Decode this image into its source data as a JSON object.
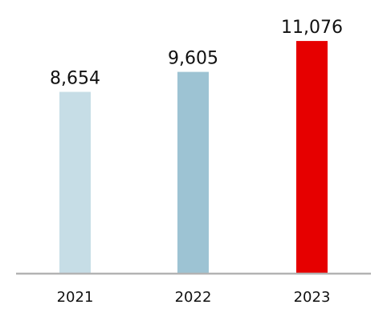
{
  "chart_data": {
    "type": "bar",
    "categories": [
      "2021",
      "2022",
      "2023"
    ],
    "values": [
      8654,
      9605,
      11076
    ],
    "value_labels": [
      "8,654",
      "9,605",
      "11,076"
    ],
    "colors": [
      "#c6dde6",
      "#9dc3d3",
      "#e60000"
    ],
    "axis_color": "#b3b3b3",
    "ylim": [
      0,
      12225
    ],
    "grid": false,
    "legend": "none"
  }
}
